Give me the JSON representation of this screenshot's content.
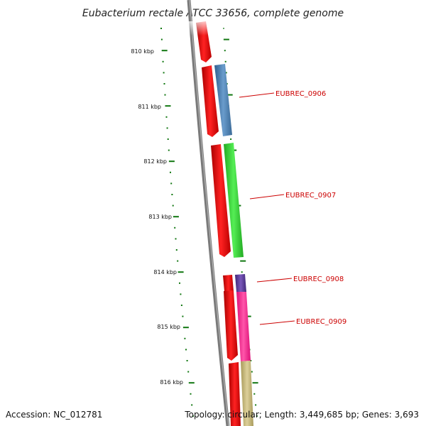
{
  "title": "Eubacterium rectale ATCC 33656, complete genome",
  "accession": "Accession: NC_012781",
  "topology": "Topology: circular; Length: 3,449,685 bp; Genes: 3,693",
  "axis": {
    "unit": "kbp",
    "tick_labels": [
      "810 kbp",
      "811 kbp",
      "812 kbp",
      "813 kbp",
      "814 kbp",
      "815 kbp",
      "816 kbp"
    ]
  },
  "gene_labels": [
    "EUBREC_0906",
    "EUBREC_0907",
    "EUBREC_0908",
    "EUBREC_0909"
  ],
  "colors": {
    "backbone": "#7a7a7a",
    "cds": "#ee1111",
    "tick": "#117711",
    "label": "#cc0000",
    "EUBREC_0906": "#4b7fb0",
    "EUBREC_0907": "#33cc33",
    "EUBREC_0908": "#5a3a9a",
    "EUBREC_0909": "#ff3399",
    "next_gene": "#c8b87a"
  }
}
